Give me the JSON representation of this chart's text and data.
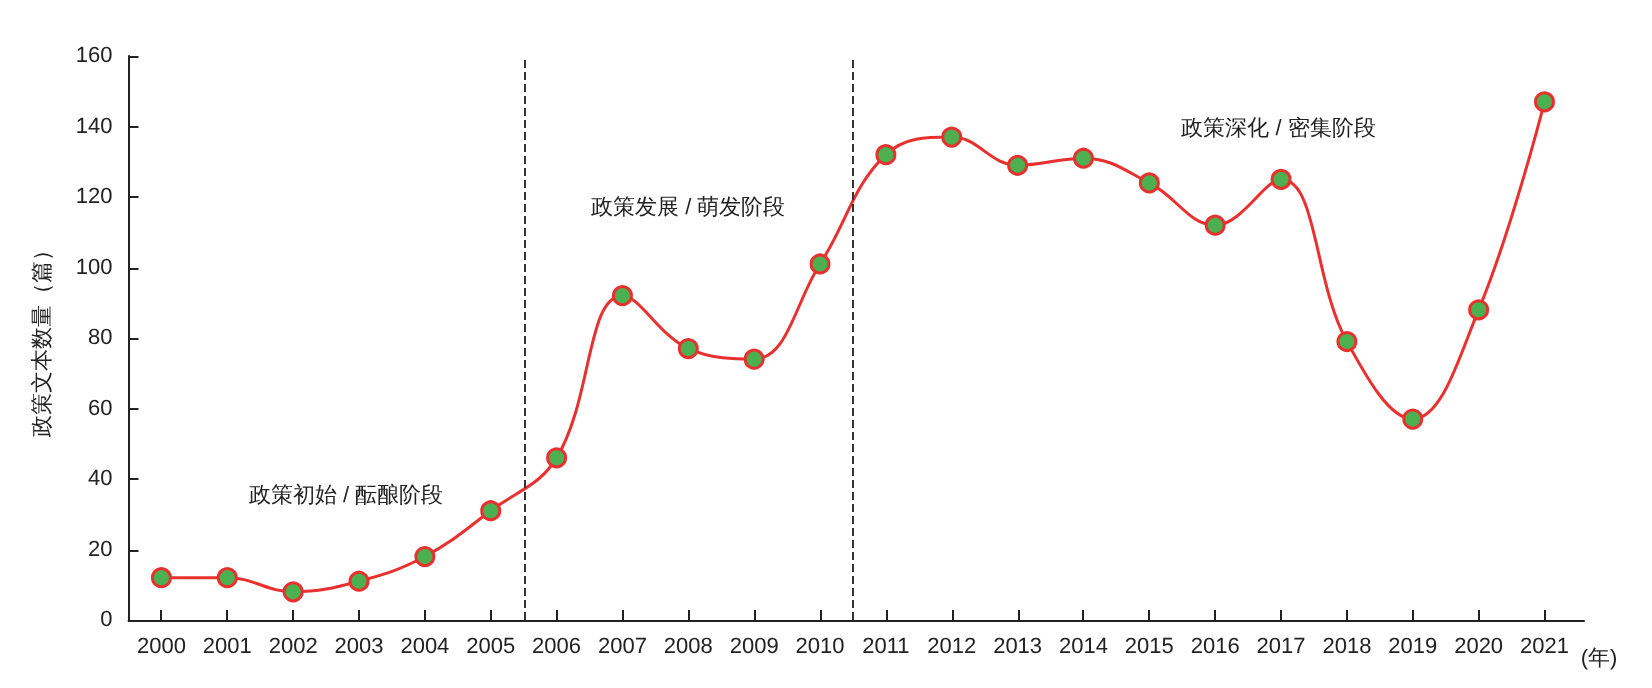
{
  "chart_data": {
    "type": "line",
    "ylabel": "政策文本数量（篇）",
    "xlabel": "(年)",
    "x": [
      2000,
      2001,
      2002,
      2003,
      2004,
      2005,
      2006,
      2007,
      2008,
      2009,
      2010,
      2011,
      2012,
      2013,
      2014,
      2015,
      2016,
      2017,
      2018,
      2019,
      2020,
      2021
    ],
    "series": [
      {
        "color": "#e8312f",
        "values": [
          12,
          12,
          8,
          11,
          18,
          31,
          46,
          92,
          77,
          74,
          101,
          132,
          137,
          129,
          131,
          124,
          112,
          125,
          79,
          57,
          88,
          147
        ]
      }
    ],
    "xlim": [
      1999.5,
      2021.6
    ],
    "xticks": [
      2000,
      2001,
      2002,
      2003,
      2004,
      2005,
      2006,
      2007,
      2008,
      2009,
      2010,
      2011,
      2012,
      2013,
      2014,
      2015,
      2016,
      2017,
      2018,
      2019,
      2020,
      2021
    ],
    "ylim": [
      0,
      160
    ],
    "yticks": [
      0,
      20,
      40,
      60,
      80,
      100,
      120,
      140,
      160
    ],
    "ref_lines": [
      {
        "axis": "x",
        "value": 2005.5,
        "line_style": "dashed",
        "color": "#333333"
      },
      {
        "axis": "x",
        "value": 2010.5,
        "line_style": "dashed",
        "color": "#333333"
      }
    ],
    "annotations": [
      "政策初始 / 酝酿阶段",
      "政策发展 / 萌发阶段",
      "政策深化 / 密集阶段"
    ],
    "grid": false,
    "marker": "circle",
    "line_style": "solid"
  }
}
